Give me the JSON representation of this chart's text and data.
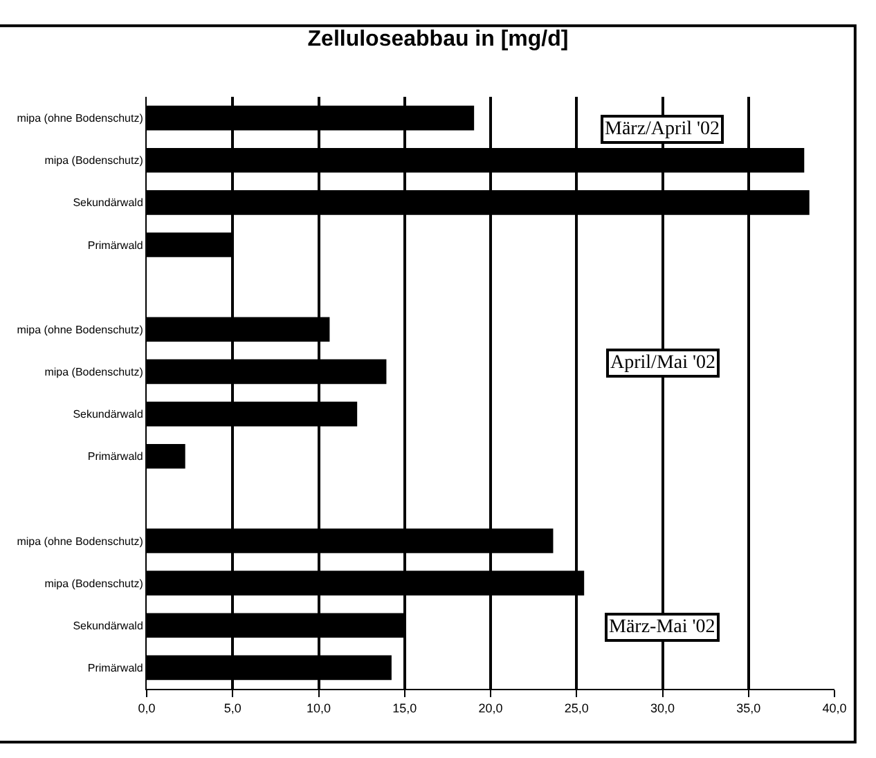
{
  "chart_data": {
    "type": "bar",
    "orientation": "horizontal",
    "title": "Zelluloseabbau in [mg/d]",
    "categories": [
      "mipa (ohne Bodenschutz)",
      "mipa (Bodenschutz)",
      "Sekundärwald",
      "Primärwald",
      null,
      "mipa (ohne Bodenschutz)",
      "mipa (Bodenschutz)",
      "Sekundärwald",
      "Primärwald",
      null,
      "mipa (ohne Bodenschutz)",
      "mipa (Bodenschutz)",
      "Sekundärwald",
      "Primärwald"
    ],
    "values": [
      19.0,
      38.2,
      38.5,
      4.9,
      null,
      10.6,
      13.9,
      12.2,
      2.2,
      null,
      23.6,
      25.4,
      15.0,
      14.2
    ],
    "color": "#000000",
    "xlim": [
      0,
      40
    ],
    "xticks": [
      {
        "value": 0,
        "label": "0,0"
      },
      {
        "value": 5,
        "label": "5,0"
      },
      {
        "value": 10,
        "label": "10,0"
      },
      {
        "value": 15,
        "label": "15,0"
      },
      {
        "value": 20,
        "label": "20,0"
      },
      {
        "value": 25,
        "label": "25,0"
      },
      {
        "value": 30,
        "label": "30,0"
      },
      {
        "value": 35,
        "label": "35,0"
      },
      {
        "value": 40,
        "label": "40,0"
      }
    ],
    "grid": "x",
    "annotations": [
      "März/April '02",
      "April/Mai '02",
      "März-Mai '02"
    ]
  }
}
